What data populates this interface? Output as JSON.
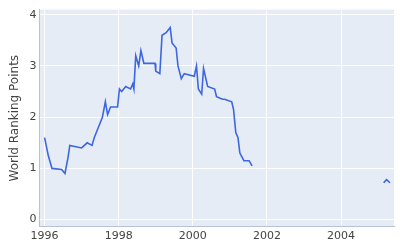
{
  "chart_data": {
    "type": "line",
    "y_label": "World Ranking Points",
    "x": [
      1996.0,
      1996.1,
      1996.2,
      1996.46,
      1996.55,
      1996.63,
      1996.68,
      1997.0,
      1997.15,
      1997.28,
      1997.34,
      1997.45,
      1997.56,
      1997.64,
      1997.7,
      1997.78,
      1997.97,
      1998.02,
      1998.08,
      1998.19,
      1998.32,
      1998.38,
      1998.41,
      1998.46,
      1998.54,
      1998.6,
      1998.68,
      1998.79,
      1998.98,
      1999.0,
      1999.11,
      1999.17,
      1999.28,
      1999.39,
      1999.44,
      1999.55,
      1999.6,
      1999.69,
      1999.77,
      2000.04,
      2000.1,
      2000.15,
      2000.24,
      2000.29,
      2000.4,
      2000.59,
      2000.64,
      2000.8,
      2000.86,
      2001.05,
      2001.1,
      2001.16,
      2001.22,
      2001.27,
      2001.38,
      2001.52,
      2001.6,
      2003.4,
      2005.15,
      2005.23,
      2005.32
    ],
    "series": [
      {
        "name": "World Ranking Points",
        "color": "#3d66e0",
        "values": [
          1.6,
          1.25,
          1.0,
          0.98,
          0.9,
          1.2,
          1.45,
          1.4,
          1.5,
          1.45,
          1.6,
          1.8,
          2.0,
          2.3,
          2.05,
          2.2,
          2.2,
          2.55,
          2.5,
          2.6,
          2.55,
          2.65,
          2.55,
          3.2,
          3.0,
          3.3,
          3.05,
          3.05,
          3.05,
          2.9,
          2.85,
          3.6,
          3.65,
          3.75,
          3.45,
          3.35,
          3.0,
          2.75,
          2.85,
          2.8,
          3.0,
          2.55,
          2.45,
          2.95,
          2.6,
          2.55,
          2.4,
          2.35,
          2.35,
          2.3,
          2.15,
          1.7,
          1.6,
          1.3,
          1.15,
          1.15,
          1.05,
          null,
          0.72,
          0.78,
          0.72
        ]
      }
    ],
    "xlim": [
      1995.86,
      2005.43
    ],
    "xticks": [
      1996,
      1998,
      2000,
      2002,
      2004
    ],
    "ylim": [
      -0.14,
      4.1
    ],
    "yticks": [
      0,
      1,
      2,
      3,
      4
    ],
    "grid": true
  }
}
